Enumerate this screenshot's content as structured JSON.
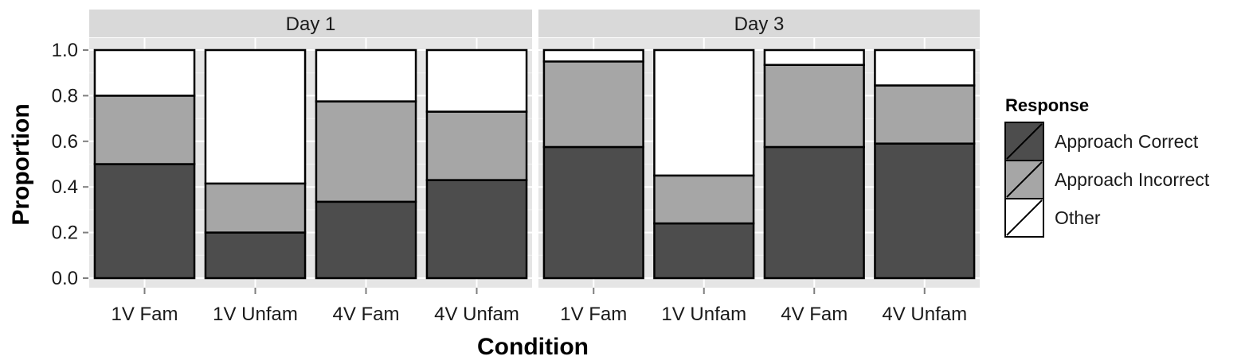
{
  "chart_data": {
    "type": "bar",
    "stacked": true,
    "xlabel": "Condition",
    "ylabel": "Proportion",
    "ylim": [
      0,
      1
    ],
    "yticks": [
      "0.0",
      "0.2",
      "0.4",
      "0.6",
      "0.8",
      "1.0"
    ],
    "grid": true,
    "legend_title": "Response",
    "legend_position": "right",
    "categories": [
      "1V Fam",
      "1V Unfam",
      "4V Fam",
      "4V Unfam"
    ],
    "panels": [
      {
        "title": "Day 1",
        "series": [
          {
            "name": "Approach Correct",
            "values": [
              0.5,
              0.2,
              0.335,
              0.43
            ]
          },
          {
            "name": "Approach Incorrect",
            "values": [
              0.3,
              0.215,
              0.44,
              0.3
            ]
          },
          {
            "name": "Other",
            "values": [
              0.2,
              0.585,
              0.225,
              0.27
            ]
          }
        ]
      },
      {
        "title": "Day 3",
        "series": [
          {
            "name": "Approach Correct",
            "values": [
              0.575,
              0.24,
              0.575,
              0.59
            ]
          },
          {
            "name": "Approach Incorrect",
            "values": [
              0.375,
              0.21,
              0.36,
              0.255
            ]
          },
          {
            "name": "Other",
            "values": [
              0.05,
              0.55,
              0.065,
              0.155
            ]
          }
        ]
      }
    ],
    "colors": {
      "Approach Correct": "#4d4d4d",
      "Approach Incorrect": "#a6a6a6",
      "Other": "#ffffff"
    }
  }
}
